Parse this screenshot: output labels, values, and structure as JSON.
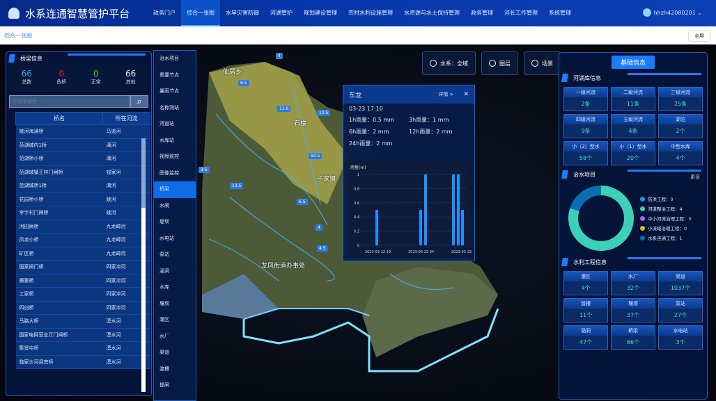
{
  "header": {
    "title": "水系连通智慧管护平台",
    "nav": [
      "政务门户",
      "综合一张图",
      "水旱灾害防御",
      "河湖管护",
      "规划建设管理",
      "农村水利设施管理",
      "水资源与水土保持管理",
      "政务管理",
      "河长工作管理",
      "系统管理"
    ],
    "active_nav": 1,
    "user": "hhzh42080201"
  },
  "breadcrumb": "综合一张图",
  "fullscreen": "全屏",
  "left": {
    "title": "桥梁信息",
    "stats": [
      {
        "value": "66",
        "label": "总数",
        "color": "#29a8ff"
      },
      {
        "value": "0",
        "label": "危桥",
        "color": "#e0182a"
      },
      {
        "value": "0",
        "label": "正常",
        "color": "#1fe01f"
      },
      {
        "value": "66",
        "label": "其他",
        "color": "#e6e6e6"
      }
    ],
    "search_placeholder": "关键字搜索",
    "columns": [
      "桥名",
      "所在河流"
    ],
    "rows": [
      [
        "姚河海通桥",
        "马道河"
      ],
      [
        "范湖城内1桥",
        "漓河"
      ],
      [
        "范湖桥小桥",
        "漓河"
      ],
      [
        "范湖城镇王林门闸桥",
        "钱家河"
      ],
      [
        "范湖城桥1桥",
        "漓河"
      ],
      [
        "花园桥小桥",
        "姚河"
      ],
      [
        "李宇村门闸桥",
        "姚河"
      ],
      [
        "河田闸桥",
        "九龙嶂河"
      ],
      [
        "凤龙小桥",
        "九龙嶂河"
      ],
      [
        "矿区桥",
        "九龙嶂河"
      ],
      [
        "国家闸门桥",
        "四家冲河"
      ],
      [
        "横寨桥",
        "四家冲河"
      ],
      [
        "工家桥",
        "四家冲河"
      ],
      [
        "四创桥",
        "四家冲河"
      ],
      [
        "马路大桥",
        "漠水河"
      ],
      [
        "国家电网营业厅门闸桥",
        "漠水河"
      ],
      [
        "集贤屯桥",
        "漠水河"
      ],
      [
        "临家沙河迎宾桥",
        "漠水河"
      ]
    ]
  },
  "layers": {
    "items": [
      "治水项目",
      "重要节点",
      "暴雨节点",
      "名称测站",
      "河道站",
      "水库站",
      "视频监控",
      "图像监控",
      "桥梁",
      "水闸",
      "堤坝",
      "水电站",
      "泵站",
      "涵洞",
      "水库",
      "堰坝",
      "灌区",
      "水厂",
      "渠道",
      "渡槽",
      "提闸"
    ],
    "active": 8
  },
  "toolbar": {
    "water": "水系：全域",
    "layer": "图层",
    "scene": "场景"
  },
  "map": {
    "places": [
      "仙居乡",
      "石楼",
      "子家镇",
      "龙凤街道办事处"
    ],
    "markers": [
      "4",
      "6.5",
      "11.6",
      "10.5",
      "13.5",
      "6.5",
      "4",
      "4.5",
      "10.5",
      "3.5"
    ]
  },
  "popup": {
    "title": "东龙",
    "detail": "详情 >",
    "time": "03-23 17:10",
    "r1h": "1h雨量：0.5 mm",
    "r3h": "3h雨量：1 mm",
    "r6h": "6h雨量：2 mm",
    "r12h": "12h雨量：2 mm",
    "r24h": "24h雨量：2 mm"
  },
  "chart_data": {
    "type": "bar",
    "ylabel": "雨量(m)",
    "ylim": [
      0,
      1
    ],
    "yticks": [
      "0",
      "0.2",
      "0.4",
      "0.6",
      "0.8",
      "1"
    ],
    "xticks": [
      "2023-03-22 19",
      "2023-03-23 04",
      "2023-03-23 13"
    ],
    "values": [
      0.5,
      0.5,
      1,
      1,
      1,
      0.5
    ],
    "color": "#1e90ff"
  },
  "right": {
    "title": "基础信息",
    "river": {
      "title": "河湖库信息",
      "cells": [
        [
          "一级河流",
          "2条"
        ],
        [
          "二级河流",
          "11条"
        ],
        [
          "三级河流",
          "25条"
        ],
        [
          "四级河流",
          "9条"
        ],
        [
          "五级河流",
          "4条"
        ],
        [
          "湖泊",
          "2个"
        ],
        [
          "小（2）型水",
          "58个"
        ],
        [
          "小（1）型水",
          "20个"
        ],
        [
          "中型水库",
          "4个"
        ]
      ]
    },
    "project": {
      "title": "治水项目",
      "more": "更多",
      "legend": [
        {
          "name": "防洪工程：0",
          "color": "#2196f3",
          "value": 0
        },
        {
          "name": "河道整治工程：4",
          "color": "#3cd0b8",
          "value": 4
        },
        {
          "name": "中小河流治理工程：0",
          "color": "#9b6cf0",
          "value": 0
        },
        {
          "name": "小流域治理工程：0",
          "color": "#f0b020",
          "value": 0
        },
        {
          "name": "水系连通工程：1",
          "color": "#0a6fb0",
          "value": 1
        }
      ]
    },
    "works": {
      "title": "水利工程信息",
      "cells": [
        [
          "灌区",
          "4个"
        ],
        [
          "水厂",
          "32个"
        ],
        [
          "渠道",
          "1037个"
        ],
        [
          "渡槽",
          "11个"
        ],
        [
          "堰坝",
          "37个"
        ],
        [
          "泵站",
          "27个"
        ],
        [
          "涵洞",
          "47个"
        ],
        [
          "桥梁",
          "66个"
        ],
        [
          "水电站",
          "3个"
        ]
      ]
    }
  }
}
